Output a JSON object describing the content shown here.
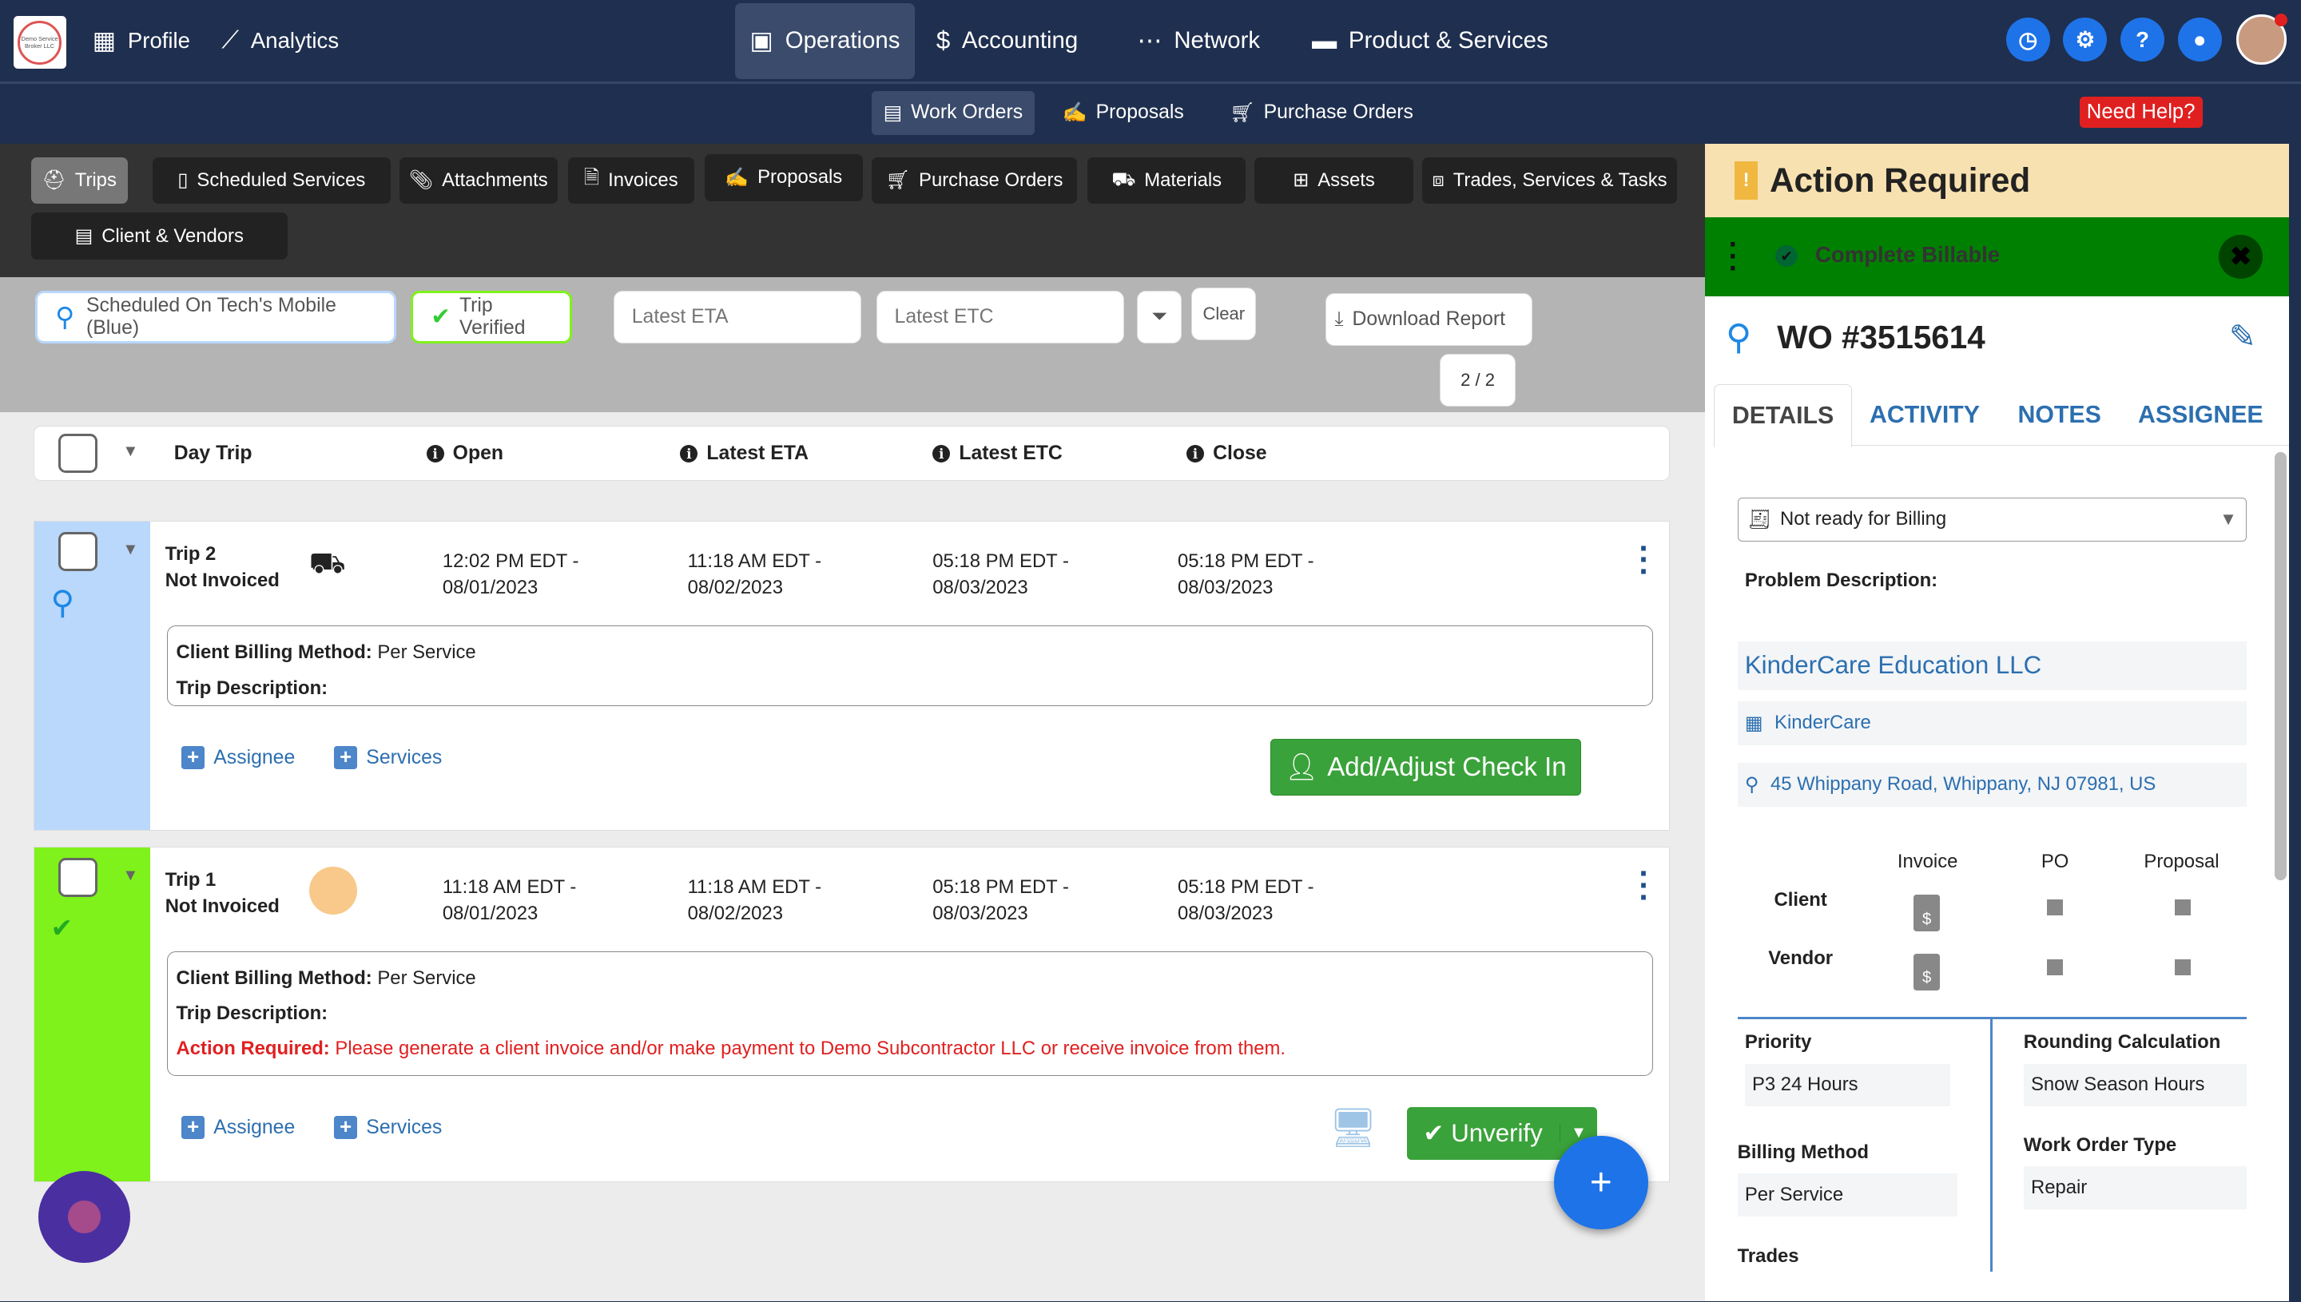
{
  "logo": {
    "text": "Demo Service Broker LLC"
  },
  "topnav": {
    "left": [
      {
        "label": "Profile",
        "icon": "building-icon"
      },
      {
        "label": "Analytics",
        "icon": "chart-line-icon"
      }
    ],
    "main": [
      {
        "label": "Operations",
        "icon": "id-badge-icon",
        "active": true
      },
      {
        "label": "Accounting",
        "icon": "money-icon"
      },
      {
        "label": "Network",
        "icon": "network-icon"
      },
      {
        "label": "Product & Services",
        "icon": "briefcase-icon"
      }
    ],
    "icons": [
      "clock-icon",
      "gear-icon",
      "help-icon",
      "chat-icon",
      "avatar"
    ],
    "help_glyph": "?"
  },
  "subnav": {
    "items": [
      {
        "label": "Work Orders",
        "active": true
      },
      {
        "label": "Proposals"
      },
      {
        "label": "Purchase Orders"
      }
    ],
    "help_button": "Need Help?"
  },
  "tabs": [
    {
      "label": "Trips",
      "active": true
    },
    {
      "label": "Scheduled Services"
    },
    {
      "label": "Attachments"
    },
    {
      "label": "Invoices"
    },
    {
      "label": "Proposals"
    },
    {
      "label": "Purchase Orders"
    },
    {
      "label": "Materials"
    },
    {
      "label": "Assets"
    },
    {
      "label": "Trades, Services & Tasks"
    },
    {
      "label": "Client & Vendors"
    }
  ],
  "filters": {
    "scheduled": "Scheduled On Tech's Mobile (Blue)",
    "verified": "Trip Verified",
    "eta_placeholder": "Latest ETA",
    "etc_placeholder": "Latest ETC",
    "clear": "Clear",
    "download": "Download Report",
    "pagination": "2 / 2"
  },
  "table": {
    "columns": [
      "Day Trip",
      "Open",
      "Latest ETA",
      "Latest ETC",
      "Close"
    ]
  },
  "trips": [
    {
      "name": "Trip 2",
      "status": "Not Invoiced",
      "open": [
        "12:02 PM EDT -",
        "08/01/2023"
      ],
      "eta": [
        "11:18 AM EDT -",
        "08/02/2023"
      ],
      "etc": [
        "05:18 PM EDT -",
        "08/03/2023"
      ],
      "close": [
        "05:18 PM EDT -",
        "08/03/2023"
      ],
      "billing_label": "Client Billing Method:",
      "billing": "Per Service",
      "desc_label": "Trip Description:",
      "assignee": "Assignee",
      "services": "Services",
      "action_button": "Add/Adjust Check In",
      "color": "#b9d8fb"
    },
    {
      "name": "Trip 1",
      "status": "Not Invoiced",
      "open": [
        "11:18 AM EDT -",
        "08/01/2023"
      ],
      "eta": [
        "11:18 AM EDT -",
        "08/02/2023"
      ],
      "etc": [
        "05:18 PM EDT -",
        "08/03/2023"
      ],
      "close": [
        "05:18 PM EDT -",
        "08/03/2023"
      ],
      "billing_label": "Client Billing Method:",
      "billing": "Per Service",
      "desc_label": "Trip Description:",
      "action_label": "Action Required:",
      "action_text": "Please generate a client invoice and/or make payment to Demo Subcontractor LLC or receive invoice from them.",
      "assignee": "Assignee",
      "services": "Services",
      "action_button": "Unverify",
      "color": "#7ef21a"
    }
  ],
  "fab": "+",
  "panel": {
    "title": "Action Required",
    "status": "Complete Billable",
    "wo": "WO #3515614",
    "tabs": [
      "DETAILS",
      "ACTIVITY",
      "NOTES",
      "ASSIGNEE"
    ],
    "billing_status": "Not ready for Billing",
    "problem_label": "Problem Description:",
    "client": "KinderCare Education LLC",
    "location": "KinderCare",
    "address": "45 Whippany Road, Whippany, NJ 07981, US",
    "doc_cols": [
      "Invoice",
      "PO",
      "Proposal"
    ],
    "doc_rows": [
      "Client",
      "Vendor"
    ],
    "priority_label": "Priority",
    "priority": "P3 24 Hours",
    "rounding_label": "Rounding Calculation",
    "rounding": "Snow Season Hours",
    "billing_method_label": "Billing Method",
    "billing_method": "Per Service",
    "wo_type_label": "Work Order Type",
    "wo_type": "Repair",
    "trades_label": "Trades"
  },
  "colors": {
    "nav": "#1f2f4f",
    "accent": "#1e73e8",
    "success": "#3aa23a",
    "danger": "#e02020",
    "status_bar": "#008000",
    "warning_bg": "#f8e1b0"
  }
}
